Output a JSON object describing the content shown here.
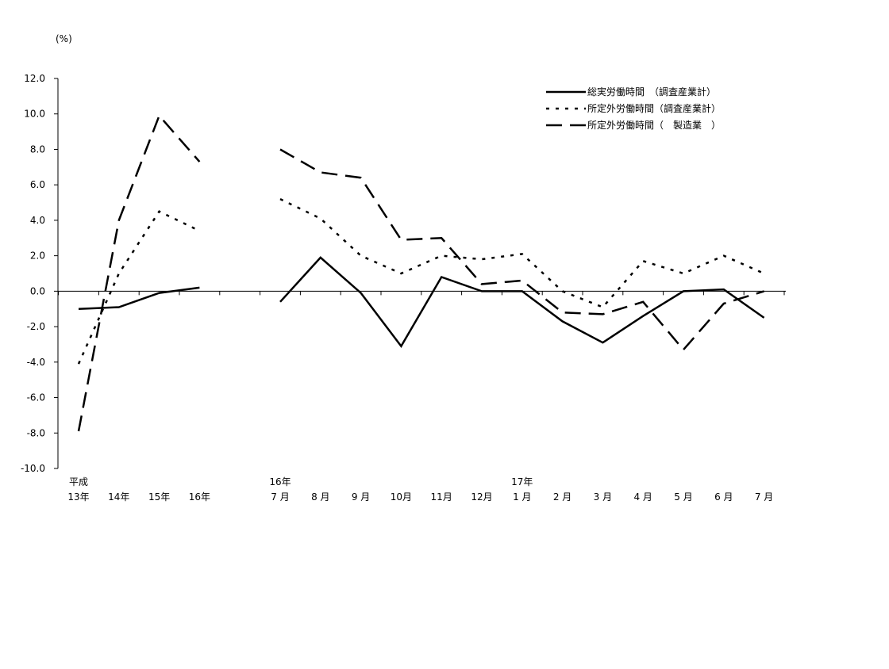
{
  "chart_data": {
    "type": "line",
    "ylabel": "(%)",
    "ylim": [
      -10,
      12
    ],
    "yticks": [
      "12.0",
      "10.0",
      "8.0",
      "6.0",
      "4.0",
      "2.0",
      "0.0",
      "-2.0",
      "-4.0",
      "-6.0",
      "-8.0",
      "-10.0"
    ],
    "grid": false,
    "legend_position": "top-right",
    "categories": [
      {
        "top": "平成",
        "bottom": "13年"
      },
      {
        "top": "",
        "bottom": "14年"
      },
      {
        "top": "",
        "bottom": "15年"
      },
      {
        "top": "",
        "bottom": "16年"
      },
      {
        "top": "",
        "bottom": ""
      },
      {
        "top": "16年",
        "bottom": "7 月"
      },
      {
        "top": "",
        "bottom": "8 月"
      },
      {
        "top": "",
        "bottom": "9 月"
      },
      {
        "top": "",
        "bottom": "10月"
      },
      {
        "top": "",
        "bottom": "11月"
      },
      {
        "top": "",
        "bottom": "12月"
      },
      {
        "top": "17年",
        "bottom": "1 月"
      },
      {
        "top": "",
        "bottom": "2 月"
      },
      {
        "top": "",
        "bottom": "3 月"
      },
      {
        "top": "",
        "bottom": "4 月"
      },
      {
        "top": "",
        "bottom": "5 月"
      },
      {
        "top": "",
        "bottom": "6 月"
      },
      {
        "top": "",
        "bottom": "7 月"
      }
    ],
    "series": [
      {
        "name": "総実労働時間　（調査産業計）",
        "style": "solid",
        "color": "#000000",
        "values": [
          -1.0,
          -0.9,
          -0.1,
          0.2,
          null,
          -0.6,
          1.9,
          -0.1,
          -3.1,
          0.8,
          0.0,
          0.0,
          -1.7,
          -2.9,
          -1.4,
          0.0,
          0.1,
          -1.5
        ]
      },
      {
        "name": "所定外労働時間（調査産業計）",
        "style": "dotted",
        "color": "#000000",
        "values": [
          -4.1,
          1.0,
          4.5,
          3.4,
          null,
          5.2,
          4.1,
          2.0,
          1.0,
          2.0,
          1.8,
          2.1,
          0.0,
          -0.9,
          1.7,
          1.0,
          2.0,
          1.0
        ]
      },
      {
        "name": "所定外労働時間（　製造業　）",
        "style": "dashed",
        "color": "#000000",
        "values": [
          -7.9,
          4.0,
          9.9,
          7.3,
          null,
          8.0,
          6.7,
          6.4,
          2.9,
          3.0,
          0.4,
          0.6,
          -1.2,
          -1.3,
          -0.6,
          -3.3,
          -0.7,
          0.0
        ]
      }
    ]
  }
}
